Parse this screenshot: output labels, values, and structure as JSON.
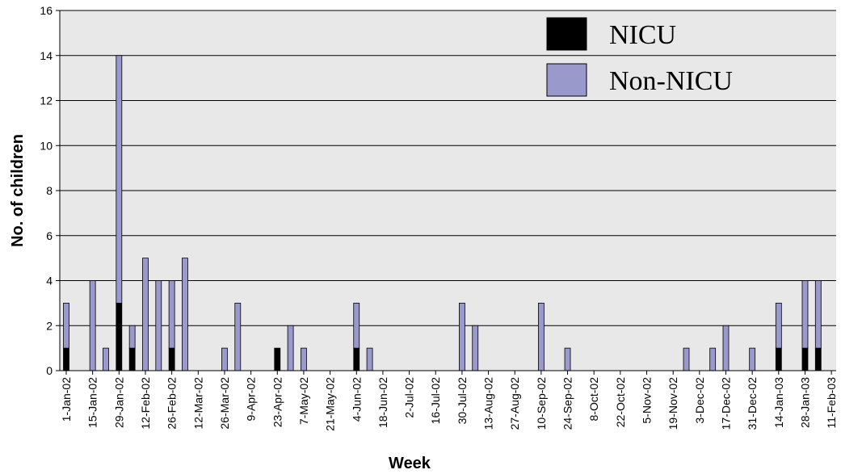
{
  "chart_data": {
    "type": "bar",
    "stacked": true,
    "title": "",
    "xlabel": "Week",
    "ylabel": "No. of children",
    "ylim": [
      0,
      16
    ],
    "yticks": [
      "0",
      "2",
      "4",
      "6",
      "8",
      "10",
      "12",
      "14",
      "16"
    ],
    "grid": true,
    "legend_position": "top-right",
    "colors": {
      "NICU": "#000000",
      "Non-NICU": "#9999cc",
      "plot_bg": "#e8e8e8",
      "grid": "#000000"
    },
    "tick_labels": [
      "1-Jan-02",
      "15-Jan-02",
      "29-Jan-02",
      "12-Feb-02",
      "26-Feb-02",
      "12-Mar-02",
      "26-Mar-02",
      "9-Apr-02",
      "23-Apr-02",
      "7-May-02",
      "21-May-02",
      "4-Jun-02",
      "18-Jun-02",
      "2-Jul-02",
      "16-Jul-02",
      "30-Jul-02",
      "13-Aug-02",
      "27-Aug-02",
      "10-Sep-02",
      "24-Sep-02",
      "8-Oct-02",
      "22-Oct-02",
      "5-Nov-02",
      "19-Nov-02",
      "3-Dec-02",
      "17-Dec-02",
      "31-Dec-02",
      "14-Jan-03",
      "28-Jan-03",
      "11-Feb-03"
    ],
    "categories": [
      "1-Jan-02",
      "8-Jan-02",
      "15-Jan-02",
      "22-Jan-02",
      "29-Jan-02",
      "5-Feb-02",
      "12-Feb-02",
      "19-Feb-02",
      "26-Feb-02",
      "5-Mar-02",
      "12-Mar-02",
      "19-Mar-02",
      "26-Mar-02",
      "2-Apr-02",
      "9-Apr-02",
      "16-Apr-02",
      "23-Apr-02",
      "30-Apr-02",
      "7-May-02",
      "14-May-02",
      "21-May-02",
      "28-May-02",
      "4-Jun-02",
      "11-Jun-02",
      "18-Jun-02",
      "25-Jun-02",
      "2-Jul-02",
      "9-Jul-02",
      "16-Jul-02",
      "23-Jul-02",
      "30-Jul-02",
      "6-Aug-02",
      "13-Aug-02",
      "20-Aug-02",
      "27-Aug-02",
      "3-Sep-02",
      "10-Sep-02",
      "17-Sep-02",
      "24-Sep-02",
      "1-Oct-02",
      "8-Oct-02",
      "15-Oct-02",
      "22-Oct-02",
      "29-Oct-02",
      "5-Nov-02",
      "12-Nov-02",
      "19-Nov-02",
      "26-Nov-02",
      "3-Dec-02",
      "10-Dec-02",
      "17-Dec-02",
      "24-Dec-02",
      "31-Dec-02",
      "7-Jan-03",
      "14-Jan-03",
      "21-Jan-03",
      "28-Jan-03",
      "4-Feb-03",
      "11-Feb-03"
    ],
    "series": [
      {
        "name": "NICU",
        "values": [
          1,
          0,
          0,
          0,
          3,
          1,
          0,
          0,
          1,
          0,
          0,
          0,
          0,
          0,
          0,
          0,
          1,
          0,
          0,
          0,
          0,
          0,
          1,
          0,
          0,
          0,
          0,
          0,
          0,
          0,
          0,
          0,
          0,
          0,
          0,
          0,
          0,
          0,
          0,
          0,
          0,
          0,
          0,
          0,
          0,
          0,
          0,
          0,
          0,
          0,
          0,
          0,
          0,
          0,
          1,
          0,
          1,
          1,
          0
        ]
      },
      {
        "name": "Non-NICU",
        "values": [
          2,
          0,
          4,
          1,
          11,
          1,
          5,
          4,
          3,
          5,
          0,
          0,
          1,
          3,
          0,
          0,
          0,
          2,
          1,
          0,
          0,
          0,
          2,
          1,
          0,
          0,
          0,
          0,
          0,
          0,
          3,
          2,
          0,
          0,
          0,
          0,
          3,
          0,
          1,
          0,
          0,
          0,
          0,
          0,
          0,
          0,
          0,
          1,
          0,
          1,
          2,
          0,
          1,
          0,
          2,
          0,
          3,
          3,
          0
        ]
      }
    ]
  }
}
